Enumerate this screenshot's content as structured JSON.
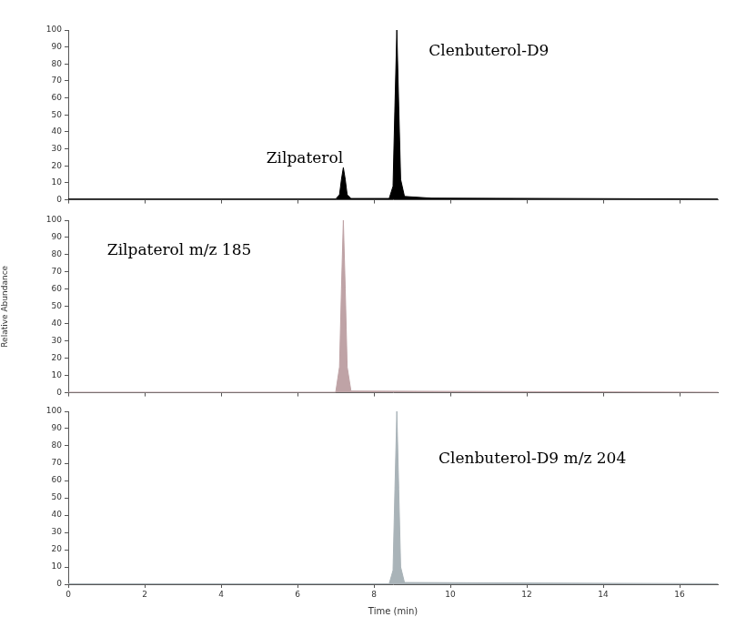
{
  "chart_data": [
    {
      "type": "line",
      "annotations": [
        "Zilpaterol",
        "Clenbuterol-D9"
      ],
      "x": [
        0,
        7.0,
        7.1,
        7.15,
        7.2,
        7.25,
        7.3,
        7.4,
        8.4,
        8.5,
        8.55,
        8.6,
        8.65,
        8.7,
        8.8,
        9.5,
        17
      ],
      "values": [
        0.5,
        0.5,
        3,
        12,
        19,
        12,
        3,
        0.8,
        0.8,
        8,
        55,
        100,
        55,
        12,
        2,
        1,
        0.5
      ],
      "color": "#000000",
      "xlim": [
        0,
        17
      ],
      "xticks": [
        0,
        2,
        4,
        6,
        8,
        10,
        12,
        14,
        16
      ],
      "ylim": [
        0,
        100
      ],
      "yticks": [
        0,
        10,
        20,
        30,
        40,
        50,
        60,
        70,
        80,
        90,
        100
      ],
      "tick_labels": "y",
      "grid": false
    },
    {
      "type": "line",
      "annotations": [
        "Zilpaterol m/z 185"
      ],
      "ylabel": "Relative Abundance",
      "x": [
        0,
        7.0,
        7.1,
        7.15,
        7.2,
        7.25,
        7.3,
        7.4,
        17
      ],
      "values": [
        0.3,
        0.3,
        15,
        60,
        100,
        60,
        15,
        1,
        0.3
      ],
      "color": "#bfa3a6",
      "xlim": [
        0,
        17
      ],
      "xticks": [
        0,
        2,
        4,
        6,
        8,
        10,
        12,
        14,
        16
      ],
      "ylim": [
        0,
        100
      ],
      "yticks": [
        0,
        10,
        20,
        30,
        40,
        50,
        60,
        70,
        80,
        90,
        100
      ],
      "tick_labels": "y",
      "grid": false
    },
    {
      "type": "line",
      "annotations": [
        "Clenbuterol-D9 m/z 204"
      ],
      "xlabel": "Time (min)",
      "x": [
        0,
        8.4,
        8.5,
        8.55,
        8.6,
        8.65,
        8.7,
        8.8,
        17
      ],
      "values": [
        0.3,
        0.3,
        8,
        55,
        100,
        55,
        10,
        1,
        0.3
      ],
      "color": "#a9b3b8",
      "xlim": [
        0,
        17
      ],
      "xticks": [
        0,
        2,
        4,
        6,
        8,
        10,
        12,
        14,
        16
      ],
      "ylim": [
        0,
        100
      ],
      "yticks": [
        0,
        10,
        20,
        30,
        40,
        50,
        60,
        70,
        80,
        90,
        100
      ],
      "grid": false
    }
  ]
}
